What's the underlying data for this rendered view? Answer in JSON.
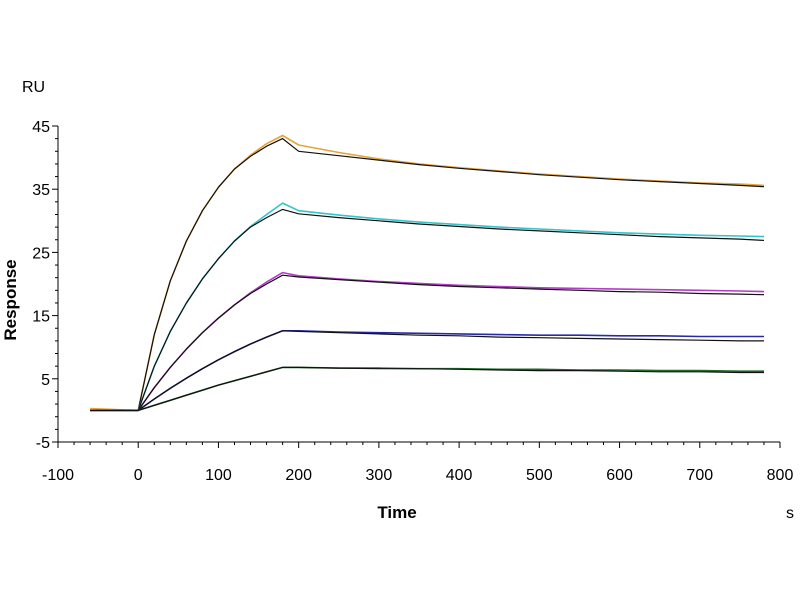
{
  "chart_data": {
    "type": "line",
    "xlabel": "Time",
    "ylabel": "Response",
    "x_unit": "s",
    "y_unit": "RU",
    "xlim": [
      -100,
      800
    ],
    "ylim": [
      -5,
      45
    ],
    "xticks": [
      -100,
      0,
      100,
      200,
      300,
      400,
      500,
      600,
      700,
      800
    ],
    "yticks": [
      -5,
      5,
      15,
      25,
      35,
      45
    ],
    "grid": false,
    "series": [
      {
        "color": "#e8a33a",
        "fit_color": "#111111",
        "x": [
          -60,
          0,
          20,
          40,
          60,
          80,
          100,
          120,
          140,
          160,
          180,
          200,
          250,
          300,
          350,
          400,
          450,
          500,
          550,
          600,
          650,
          700,
          750,
          780
        ],
        "y": [
          0.3,
          0.0,
          12.0,
          20.5,
          26.8,
          31.6,
          35.3,
          38.2,
          40.4,
          42.2,
          43.5,
          42.0,
          40.8,
          39.8,
          39.0,
          38.4,
          37.9,
          37.4,
          37.0,
          36.6,
          36.3,
          36.0,
          35.8,
          35.6
        ],
        "fit_y": [
          0.0,
          0.0,
          12.0,
          20.5,
          26.8,
          31.6,
          35.3,
          38.2,
          40.2,
          41.8,
          43.0,
          41.0,
          40.3,
          39.6,
          38.9,
          38.3,
          37.8,
          37.3,
          36.9,
          36.5,
          36.2,
          35.9,
          35.6,
          35.4
        ]
      },
      {
        "color": "#33c4cc",
        "fit_color": "#111111",
        "x": [
          -60,
          0,
          20,
          40,
          60,
          80,
          100,
          120,
          140,
          160,
          180,
          200,
          250,
          300,
          350,
          400,
          450,
          500,
          550,
          600,
          650,
          700,
          750,
          780
        ],
        "y": [
          0.0,
          0.0,
          7.0,
          12.5,
          17.0,
          20.8,
          24.0,
          26.8,
          29.1,
          31.0,
          32.8,
          31.6,
          30.9,
          30.3,
          29.8,
          29.4,
          29.0,
          28.7,
          28.4,
          28.1,
          27.9,
          27.7,
          27.6,
          27.5
        ],
        "fit_y": [
          0.0,
          0.0,
          7.0,
          12.5,
          17.0,
          20.8,
          24.0,
          26.8,
          29.0,
          30.5,
          31.8,
          31.1,
          30.5,
          30.0,
          29.5,
          29.1,
          28.7,
          28.4,
          28.1,
          27.8,
          27.5,
          27.3,
          27.1,
          26.9
        ]
      },
      {
        "color": "#b43cc8",
        "fit_color": "#111111",
        "x": [
          -60,
          0,
          20,
          40,
          60,
          80,
          100,
          120,
          140,
          160,
          180,
          200,
          250,
          300,
          350,
          400,
          450,
          500,
          550,
          600,
          650,
          700,
          750,
          780
        ],
        "y": [
          0.0,
          0.0,
          3.6,
          6.8,
          9.7,
          12.3,
          14.6,
          16.7,
          18.6,
          20.3,
          21.8,
          21.3,
          20.8,
          20.4,
          20.1,
          19.8,
          19.6,
          19.4,
          19.3,
          19.2,
          19.1,
          19.0,
          18.9,
          18.8
        ],
        "fit_y": [
          0.0,
          0.0,
          3.6,
          6.8,
          9.7,
          12.3,
          14.6,
          16.7,
          18.5,
          20.0,
          21.4,
          21.1,
          20.7,
          20.3,
          19.9,
          19.6,
          19.4,
          19.2,
          19.0,
          18.8,
          18.7,
          18.5,
          18.4,
          18.3
        ]
      },
      {
        "color": "#2a2aa8",
        "fit_color": "#111111",
        "x": [
          -60,
          0,
          20,
          40,
          60,
          80,
          100,
          120,
          140,
          160,
          180,
          200,
          250,
          300,
          350,
          400,
          450,
          500,
          550,
          600,
          650,
          700,
          750,
          780
        ],
        "y": [
          0.0,
          0.0,
          1.8,
          3.5,
          5.1,
          6.6,
          8.0,
          9.3,
          10.5,
          11.6,
          12.6,
          12.6,
          12.4,
          12.3,
          12.2,
          12.1,
          12.0,
          11.9,
          11.9,
          11.8,
          11.8,
          11.7,
          11.7,
          11.7
        ],
        "fit_y": [
          0.0,
          0.0,
          1.8,
          3.5,
          5.1,
          6.6,
          8.0,
          9.3,
          10.5,
          11.6,
          12.6,
          12.5,
          12.3,
          12.1,
          11.9,
          11.8,
          11.6,
          11.5,
          11.4,
          11.3,
          11.2,
          11.1,
          11.0,
          11.0
        ]
      },
      {
        "color": "#1f6b2a",
        "fit_color": "#111111",
        "x": [
          -60,
          0,
          20,
          40,
          60,
          80,
          100,
          120,
          140,
          160,
          180,
          200,
          250,
          300,
          350,
          400,
          450,
          500,
          550,
          600,
          650,
          700,
          750,
          780
        ],
        "y": [
          0.0,
          0.0,
          0.8,
          1.6,
          2.4,
          3.2,
          4.0,
          4.7,
          5.4,
          6.1,
          6.8,
          6.8,
          6.7,
          6.7,
          6.6,
          6.6,
          6.5,
          6.5,
          6.4,
          6.4,
          6.3,
          6.3,
          6.2,
          6.2
        ],
        "fit_y": [
          0.0,
          0.0,
          0.8,
          1.6,
          2.4,
          3.2,
          4.0,
          4.7,
          5.4,
          6.1,
          6.8,
          6.8,
          6.7,
          6.6,
          6.6,
          6.5,
          6.4,
          6.3,
          6.3,
          6.2,
          6.1,
          6.1,
          6.0,
          6.0
        ]
      }
    ]
  }
}
